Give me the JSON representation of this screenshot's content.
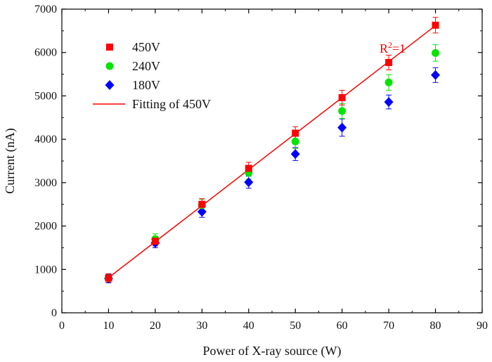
{
  "chart_data": {
    "type": "scatter",
    "xlabel": "Power of X-ray source (W)",
    "ylabel": "Current (nA)",
    "xlim": [
      0,
      90
    ],
    "ylim": [
      0,
      7000
    ],
    "xticks": [
      "0",
      "10",
      "20",
      "30",
      "40",
      "50",
      "60",
      "70",
      "80",
      "90"
    ],
    "yticks": [
      "0",
      "1000",
      "2000",
      "3000",
      "4000",
      "5000",
      "6000",
      "7000"
    ],
    "grid": false,
    "legend_position": "top-left",
    "series": [
      {
        "name": "450V",
        "marker": "square",
        "color": "#ff0000",
        "x": [
          10,
          20,
          30,
          40,
          50,
          60,
          70,
          80
        ],
        "values": [
          800,
          1650,
          2500,
          3330,
          4140,
          4960,
          5770,
          6630
        ],
        "error": [
          100,
          110,
          130,
          140,
          150,
          170,
          170,
          180
        ]
      },
      {
        "name": "240V",
        "marker": "circle",
        "color": "#00e600",
        "x": [
          10,
          20,
          30,
          40,
          50,
          60,
          70,
          80
        ],
        "values": [
          800,
          1700,
          2480,
          3230,
          3950,
          4650,
          5310,
          5990
        ],
        "error": [
          100,
          120,
          140,
          150,
          160,
          170,
          180,
          190
        ]
      },
      {
        "name": "180V",
        "marker": "diamond",
        "color": "#0000ff",
        "x": [
          10,
          20,
          30,
          40,
          50,
          60,
          70,
          80
        ],
        "values": [
          790,
          1610,
          2330,
          3010,
          3660,
          4270,
          4860,
          5480
        ],
        "error": [
          100,
          110,
          130,
          140,
          150,
          200,
          160,
          170
        ]
      }
    ],
    "fit": {
      "name": "Fitting of 450V",
      "color": "#ff0000",
      "x": [
        10,
        80
      ],
      "values": [
        810,
        6620
      ]
    },
    "annotation": {
      "text": "R",
      "superscript": "2",
      "suffix": "=1",
      "color": "#ff0000"
    }
  }
}
